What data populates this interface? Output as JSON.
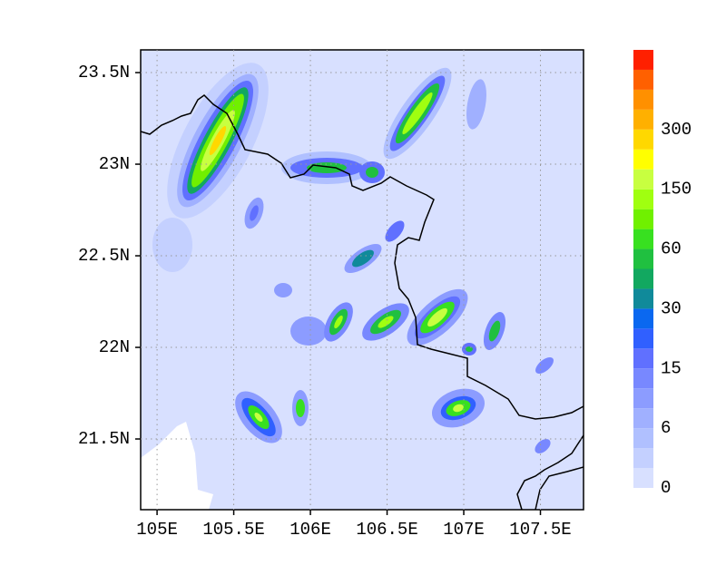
{
  "map": {
    "xlim": [
      104.893,
      107.781
    ],
    "ylim": [
      21.114,
      23.624
    ],
    "xticks": [
      {
        "value": 105,
        "label": "105E"
      },
      {
        "value": 105.5,
        "label": "105.5E"
      },
      {
        "value": 106,
        "label": "106E"
      },
      {
        "value": 106.5,
        "label": "106.5E"
      },
      {
        "value": 107,
        "label": "107E"
      },
      {
        "value": 107.5,
        "label": "107.5E"
      }
    ],
    "yticks": [
      {
        "value": 21.5,
        "label": "21.5N"
      },
      {
        "value": 22,
        "label": "22N"
      },
      {
        "value": 22.5,
        "label": "22.5N"
      },
      {
        "value": 23,
        "label": "23N"
      },
      {
        "value": 23.5,
        "label": "23.5N"
      }
    ],
    "grid": true,
    "colorbar": {
      "ticks": [
        0,
        6,
        15,
        30,
        60,
        150,
        300
      ],
      "colors": [
        "#d8e0ff",
        "#c4d0ff",
        "#b0c0ff",
        "#a0b0ff",
        "#8c9cff",
        "#7888ff",
        "#6070ff",
        "#3060ff",
        "#0a68f0",
        "#108a9a",
        "#12a860",
        "#20c040",
        "#38e020",
        "#70f000",
        "#a0ff10",
        "#c8ff40",
        "#ffff00",
        "#ffd800",
        "#ffb000",
        "#ff9000",
        "#ff6000",
        "#ff2000"
      ]
    }
  }
}
